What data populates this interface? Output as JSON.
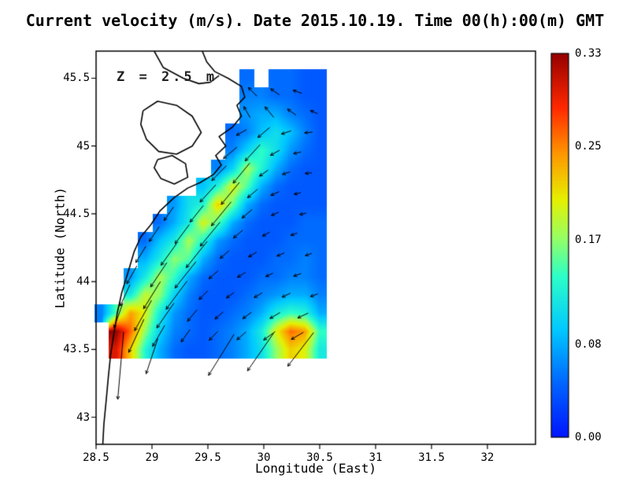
{
  "title": "Current velocity (m/s). Date 2015.10.19. Time 00(h):00(m) GMT",
  "annotation": "Z = 2.5 m",
  "axes": {
    "xlabel": "Longitude (East)",
    "ylabel": "Latitude (North)",
    "x_ticks": [
      {
        "value": 28.5,
        "label": "28.5"
      },
      {
        "value": 29,
        "label": "29"
      },
      {
        "value": 29.5,
        "label": "29.5"
      },
      {
        "value": 30,
        "label": "30"
      },
      {
        "value": 30.5,
        "label": "30.5"
      },
      {
        "value": 31,
        "label": "31"
      },
      {
        "value": 31.5,
        "label": "31.5"
      },
      {
        "value": 32,
        "label": "32"
      }
    ],
    "y_ticks": [
      {
        "value": 43,
        "label": "43"
      },
      {
        "value": 43.5,
        "label": "43.5"
      },
      {
        "value": 44,
        "label": "44"
      },
      {
        "value": 44.5,
        "label": "44.5"
      },
      {
        "value": 45,
        "label": "45"
      },
      {
        "value": 45.5,
        "label": "45.5"
      }
    ]
  },
  "colorbar": {
    "min": 0.0,
    "max": 0.33,
    "ticks": [
      {
        "value": 0.0,
        "label": "0.00"
      },
      {
        "value": 0.08,
        "label": "0.08"
      },
      {
        "value": 0.17,
        "label": "0.17"
      },
      {
        "value": 0.25,
        "label": "0.25"
      },
      {
        "value": 0.33,
        "label": "0.33"
      }
    ]
  },
  "chart_data": {
    "type": "heatmap",
    "title": "Current velocity (m/s). Date 2015.10.19. Time 00(h):00(m) GMT",
    "xlabel": "Longitude (East)",
    "ylabel": "Latitude (North)",
    "units": "m/s",
    "depth_label": "Z = 2.5 m",
    "xlim": [
      28.5,
      32.43
    ],
    "ylim": [
      42.8,
      45.7
    ],
    "value_range": [
      0.0,
      0.33
    ],
    "grid": {
      "lon_start": 28.55,
      "lon_step": 0.13,
      "lat_start": 45.5,
      "lat_step": -0.133333,
      "nx": 16,
      "ny": 16,
      "values_north_to_south": [
        [
          null,
          null,
          null,
          null,
          null,
          null,
          null,
          null,
          null,
          null,
          0.05,
          null,
          0.05,
          0.05,
          0.04,
          0.04
        ],
        [
          null,
          null,
          null,
          null,
          null,
          null,
          null,
          null,
          null,
          null,
          0.06,
          0.06,
          0.05,
          0.05,
          0.04,
          0.04
        ],
        [
          null,
          null,
          null,
          null,
          null,
          null,
          null,
          null,
          null,
          null,
          0.07,
          0.08,
          0.08,
          0.06,
          0.05,
          0.04
        ],
        [
          null,
          null,
          null,
          null,
          null,
          null,
          null,
          null,
          null,
          0.05,
          0.06,
          0.09,
          0.11,
          0.09,
          0.06,
          0.04
        ],
        [
          null,
          null,
          null,
          null,
          null,
          null,
          null,
          null,
          null,
          0.06,
          0.1,
          0.14,
          0.11,
          0.07,
          0.05,
          0.04
        ],
        [
          null,
          null,
          null,
          null,
          null,
          null,
          null,
          null,
          0.06,
          0.1,
          0.18,
          0.13,
          0.08,
          0.05,
          0.04,
          0.04
        ],
        [
          null,
          null,
          null,
          null,
          null,
          null,
          null,
          0.09,
          0.13,
          0.2,
          0.15,
          0.08,
          0.05,
          0.04,
          0.04,
          0.04
        ],
        [
          null,
          null,
          null,
          null,
          null,
          0.07,
          0.11,
          0.13,
          0.22,
          0.16,
          0.08,
          0.05,
          0.04,
          0.04,
          0.04,
          0.04
        ],
        [
          null,
          null,
          null,
          null,
          0.05,
          0.08,
          0.12,
          0.2,
          0.15,
          0.08,
          0.05,
          0.04,
          0.04,
          0.04,
          0.05,
          0.05
        ],
        [
          null,
          null,
          null,
          0.05,
          0.09,
          0.12,
          0.18,
          0.13,
          0.07,
          0.05,
          0.04,
          0.04,
          0.04,
          0.05,
          0.05,
          0.05
        ],
        [
          null,
          null,
          null,
          0.08,
          0.12,
          0.17,
          0.15,
          0.08,
          0.05,
          0.04,
          0.04,
          0.04,
          0.05,
          0.05,
          0.06,
          0.05
        ],
        [
          null,
          null,
          0.07,
          0.12,
          0.18,
          0.14,
          0.08,
          0.05,
          0.04,
          0.04,
          0.04,
          0.05,
          0.05,
          0.06,
          0.06,
          0.05
        ],
        [
          null,
          null,
          0.12,
          0.19,
          0.17,
          0.1,
          0.06,
          0.04,
          0.04,
          0.04,
          0.05,
          0.06,
          0.07,
          0.08,
          0.08,
          0.06
        ],
        [
          0.06,
          0.15,
          0.24,
          0.2,
          0.12,
          0.07,
          0.05,
          0.04,
          0.04,
          0.05,
          0.06,
          0.08,
          0.12,
          0.14,
          0.13,
          0.08
        ],
        [
          null,
          0.33,
          0.26,
          0.17,
          0.1,
          0.06,
          0.05,
          0.04,
          0.05,
          0.06,
          0.08,
          0.12,
          0.2,
          0.26,
          0.24,
          0.14
        ],
        [
          null,
          0.3,
          0.22,
          0.13,
          0.08,
          0.05,
          0.04,
          0.04,
          0.05,
          0.06,
          0.08,
          0.11,
          0.17,
          0.22,
          0.2,
          0.12
        ]
      ]
    },
    "arrows_format": "lon, lat, direction_deg_ccw_from_east, length_deg",
    "arrows": [
      [
        29.9,
        45.4,
        140,
        0.1
      ],
      [
        30.1,
        45.4,
        150,
        0.09
      ],
      [
        30.3,
        45.4,
        165,
        0.08
      ],
      [
        29.85,
        45.25,
        125,
        0.1
      ],
      [
        30.05,
        45.25,
        135,
        0.11
      ],
      [
        30.25,
        45.25,
        150,
        0.09
      ],
      [
        30.45,
        45.25,
        160,
        0.07
      ],
      [
        29.8,
        45.1,
        205,
        0.1
      ],
      [
        30.0,
        45.1,
        215,
        0.13
      ],
      [
        30.2,
        45.1,
        195,
        0.09
      ],
      [
        30.4,
        45.1,
        185,
        0.07
      ],
      [
        29.7,
        44.95,
        215,
        0.15
      ],
      [
        29.9,
        44.95,
        222,
        0.18
      ],
      [
        30.1,
        44.95,
        205,
        0.09
      ],
      [
        30.3,
        44.95,
        190,
        0.07
      ],
      [
        29.6,
        44.8,
        220,
        0.17
      ],
      [
        29.8,
        44.8,
        225,
        0.21
      ],
      [
        30.0,
        44.8,
        210,
        0.09
      ],
      [
        30.2,
        44.8,
        195,
        0.07
      ],
      [
        30.4,
        44.8,
        185,
        0.06
      ],
      [
        29.5,
        44.65,
        222,
        0.19
      ],
      [
        29.7,
        44.65,
        225,
        0.23
      ],
      [
        29.9,
        44.65,
        215,
        0.11
      ],
      [
        30.1,
        44.65,
        200,
        0.08
      ],
      [
        30.3,
        44.65,
        190,
        0.06
      ],
      [
        29.15,
        44.5,
        230,
        0.13
      ],
      [
        29.4,
        44.5,
        226,
        0.17
      ],
      [
        29.62,
        44.5,
        225,
        0.25
      ],
      [
        29.85,
        44.5,
        215,
        0.11
      ],
      [
        30.1,
        44.5,
        200,
        0.07
      ],
      [
        30.35,
        44.5,
        190,
        0.06
      ],
      [
        29.02,
        44.35,
        231,
        0.14
      ],
      [
        29.27,
        44.35,
        228,
        0.19
      ],
      [
        29.52,
        44.35,
        225,
        0.25
      ],
      [
        29.77,
        44.35,
        215,
        0.1
      ],
      [
        30.02,
        44.35,
        205,
        0.07
      ],
      [
        30.27,
        44.35,
        195,
        0.06
      ],
      [
        28.9,
        44.2,
        233,
        0.15
      ],
      [
        29.15,
        44.2,
        229,
        0.21
      ],
      [
        29.4,
        44.2,
        226,
        0.27
      ],
      [
        29.65,
        44.2,
        215,
        0.1
      ],
      [
        29.9,
        44.2,
        206,
        0.08
      ],
      [
        30.15,
        44.2,
        200,
        0.07
      ],
      [
        30.4,
        44.2,
        195,
        0.06
      ],
      [
        28.82,
        44.05,
        236,
        0.16
      ],
      [
        29.06,
        44.05,
        231,
        0.23
      ],
      [
        29.3,
        44.05,
        226,
        0.27
      ],
      [
        29.55,
        44.05,
        216,
        0.1
      ],
      [
        29.8,
        44.05,
        207,
        0.08
      ],
      [
        30.05,
        44.05,
        201,
        0.07
      ],
      [
        30.3,
        44.05,
        196,
        0.07
      ],
      [
        28.76,
        43.9,
        241,
        0.18
      ],
      [
        29.0,
        43.9,
        233,
        0.25
      ],
      [
        29.22,
        43.9,
        228,
        0.28
      ],
      [
        29.46,
        43.9,
        220,
        0.1
      ],
      [
        29.7,
        43.9,
        211,
        0.08
      ],
      [
        29.95,
        43.9,
        206,
        0.08
      ],
      [
        30.2,
        43.9,
        201,
        0.08
      ],
      [
        30.45,
        43.9,
        196,
        0.07
      ],
      [
        28.7,
        43.75,
        247,
        0.2
      ],
      [
        28.92,
        43.75,
        236,
        0.27
      ],
      [
        29.12,
        43.75,
        230,
        0.24
      ],
      [
        29.36,
        43.75,
        225,
        0.12
      ],
      [
        29.6,
        43.75,
        216,
        0.09
      ],
      [
        29.85,
        43.75,
        211,
        0.09
      ],
      [
        30.1,
        43.75,
        206,
        0.1
      ],
      [
        30.35,
        43.75,
        201,
        0.1
      ],
      [
        28.86,
        43.6,
        241,
        0.28
      ],
      [
        29.06,
        43.6,
        235,
        0.19
      ],
      [
        29.3,
        43.6,
        229,
        0.12
      ],
      [
        29.55,
        43.6,
        221,
        0.1
      ],
      [
        29.8,
        43.6,
        216,
        0.1
      ],
      [
        30.05,
        43.6,
        211,
        0.12
      ],
      [
        30.3,
        43.6,
        206,
        0.12
      ],
      [
        28.72,
        43.38,
        264,
        0.5
      ],
      [
        29.0,
        43.45,
        248,
        0.28
      ],
      [
        29.62,
        43.46,
        233,
        0.38
      ],
      [
        29.97,
        43.48,
        230,
        0.36
      ],
      [
        30.33,
        43.5,
        227,
        0.34
      ]
    ],
    "coastlines_lon_lat": [
      [
        [
          29.45,
          45.7
        ],
        [
          29.49,
          45.62
        ],
        [
          29.56,
          45.55
        ],
        [
          29.68,
          45.5
        ],
        [
          29.8,
          45.44
        ],
        [
          29.83,
          45.36
        ],
        [
          29.76,
          45.3
        ],
        [
          29.8,
          45.22
        ],
        [
          29.72,
          45.14
        ],
        [
          29.6,
          45.07
        ],
        [
          29.66,
          45.0
        ],
        [
          29.57,
          44.93
        ],
        [
          29.62,
          44.86
        ],
        [
          29.55,
          44.79
        ],
        [
          29.43,
          44.73
        ],
        [
          29.32,
          44.69
        ],
        [
          29.2,
          44.62
        ],
        [
          29.07,
          44.52
        ],
        [
          28.99,
          44.42
        ],
        [
          28.9,
          44.33
        ],
        [
          28.84,
          44.22
        ],
        [
          28.79,
          44.08
        ],
        [
          28.73,
          43.92
        ],
        [
          28.69,
          43.77
        ],
        [
          28.66,
          43.62
        ],
        [
          28.63,
          43.46
        ],
        [
          28.61,
          43.3
        ],
        [
          28.59,
          43.12
        ],
        [
          28.57,
          42.95
        ],
        [
          28.56,
          42.8
        ]
      ],
      [
        [
          29.02,
          45.7
        ],
        [
          29.1,
          45.58
        ],
        [
          29.28,
          45.5
        ],
        [
          29.42,
          45.46
        ],
        [
          29.52,
          45.47
        ],
        [
          29.6,
          45.52
        ]
      ],
      [
        [
          28.92,
          45.26
        ],
        [
          29.05,
          45.33
        ],
        [
          29.22,
          45.3
        ],
        [
          29.36,
          45.22
        ],
        [
          29.44,
          45.1
        ],
        [
          29.36,
          45.0
        ],
        [
          29.22,
          44.94
        ],
        [
          29.06,
          44.96
        ],
        [
          28.95,
          45.05
        ],
        [
          28.9,
          45.16
        ],
        [
          28.92,
          45.26
        ]
      ],
      [
        [
          29.05,
          44.9
        ],
        [
          29.18,
          44.93
        ],
        [
          29.3,
          44.87
        ],
        [
          29.32,
          44.77
        ],
        [
          29.2,
          44.72
        ],
        [
          29.08,
          44.76
        ],
        [
          29.02,
          44.84
        ],
        [
          29.05,
          44.9
        ]
      ]
    ],
    "colormap_stops": [
      {
        "t": 0.0,
        "color": "#0014ff"
      },
      {
        "t": 0.14,
        "color": "#0064ff"
      },
      {
        "t": 0.28,
        "color": "#00c8ff"
      },
      {
        "t": 0.42,
        "color": "#2cffc8"
      },
      {
        "t": 0.52,
        "color": "#96ff64"
      },
      {
        "t": 0.62,
        "color": "#e6f000"
      },
      {
        "t": 0.74,
        "color": "#ff9600"
      },
      {
        "t": 0.86,
        "color": "#ff2800"
      },
      {
        "t": 1.0,
        "color": "#960000"
      }
    ]
  }
}
